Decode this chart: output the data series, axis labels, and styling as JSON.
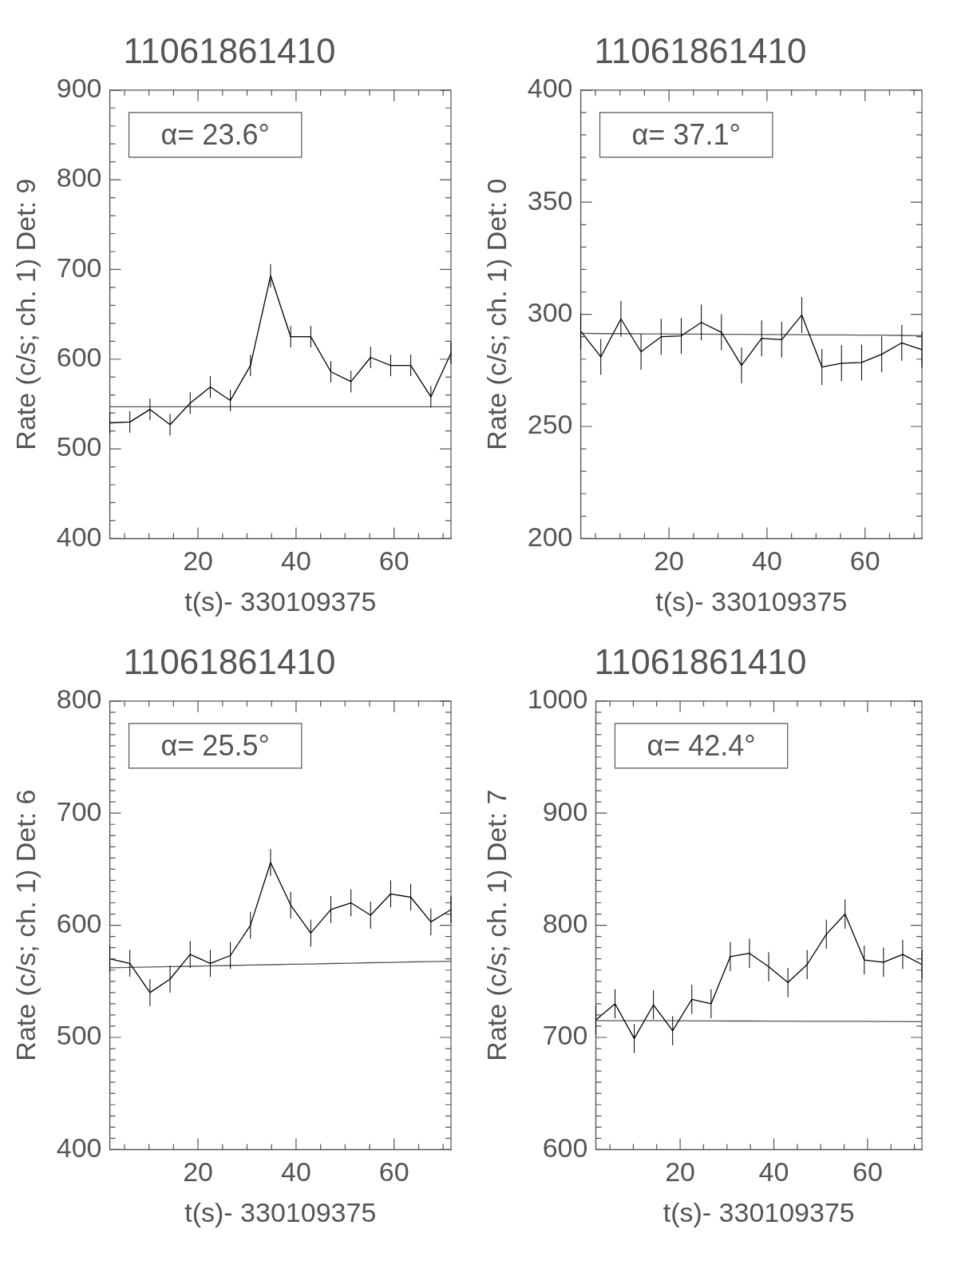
{
  "chart_data": [
    {
      "type": "line",
      "title": "11061861410",
      "xlabel": "t(s)- 330109375",
      "ylabel": "Rate (c/s; ch. 1) Det: 9",
      "annotations": [
        "α= 23.6°"
      ],
      "x": [
        2,
        6.1,
        10.2,
        14.3,
        18.4,
        22.5,
        26.6,
        30.7,
        34.8,
        38.9,
        43,
        47.1,
        51.2,
        55.2,
        59.3,
        63.4,
        67.5,
        71.6
      ],
      "xlim": [
        2,
        71.6
      ],
      "xticks": [
        {
          "value": 5,
          "label": null
        },
        {
          "value": 10,
          "label": null
        },
        {
          "value": 15,
          "label": null
        },
        20,
        {
          "value": 25,
          "label": null
        },
        {
          "value": 30,
          "label": null
        },
        {
          "value": 35,
          "label": null
        },
        40,
        {
          "value": 45,
          "label": null
        },
        {
          "value": 50,
          "label": null
        },
        {
          "value": 55,
          "label": null
        },
        60,
        {
          "value": 65,
          "label": null
        },
        {
          "value": 70,
          "label": null
        }
      ],
      "ylim": [
        400,
        900
      ],
      "yticks": [
        400,
        {
          "value": 420,
          "label": null
        },
        {
          "value": 440,
          "label": null
        },
        {
          "value": 460,
          "label": null
        },
        {
          "value": 480,
          "label": null
        },
        500,
        {
          "value": 520,
          "label": null
        },
        {
          "value": 540,
          "label": null
        },
        {
          "value": 560,
          "label": null
        },
        {
          "value": 580,
          "label": null
        },
        600,
        {
          "value": 620,
          "label": null
        },
        {
          "value": 640,
          "label": null
        },
        {
          "value": 660,
          "label": null
        },
        {
          "value": 680,
          "label": null
        },
        700,
        {
          "value": 720,
          "label": null
        },
        {
          "value": 740,
          "label": null
        },
        {
          "value": 760,
          "label": null
        },
        {
          "value": 780,
          "label": null
        },
        800,
        {
          "value": 820,
          "label": null
        },
        {
          "value": 840,
          "label": null
        },
        {
          "value": 860,
          "label": null
        },
        {
          "value": 880,
          "label": null
        },
        900
      ],
      "series": [
        {
          "color": "#000000",
          "values": [
            529,
            530,
            544,
            527,
            551,
            569,
            554,
            593,
            693,
            625,
            625,
            586,
            575,
            602,
            593,
            593,
            558,
            607
          ],
          "errors": [
            12,
            12,
            12,
            12,
            12,
            12,
            12,
            12,
            13,
            12,
            12,
            12,
            12,
            12,
            12,
            12,
            12,
            12
          ]
        },
        {
          "type": "line",
          "color": "#555555",
          "values": [
            547,
            547,
            547,
            547,
            547,
            547,
            547,
            547,
            547,
            547,
            547,
            547,
            547,
            547,
            547,
            547,
            547,
            547
          ]
        }
      ]
    },
    {
      "type": "line",
      "title": "11061861410",
      "xlabel": "t(s)- 330109375",
      "ylabel": "Rate (c/s; ch. 1) Det: 0",
      "annotations": [
        "α= 37.1°"
      ],
      "x": [
        2,
        6.1,
        10.2,
        14.3,
        18.4,
        22.5,
        26.6,
        30.7,
        34.8,
        38.9,
        43,
        47.1,
        51.2,
        55.2,
        59.3,
        63.4,
        67.5,
        71.6
      ],
      "xlim": [
        2,
        71.6
      ],
      "xticks": [
        {
          "value": 5,
          "label": null
        },
        {
          "value": 10,
          "label": null
        },
        {
          "value": 15,
          "label": null
        },
        20,
        {
          "value": 25,
          "label": null
        },
        {
          "value": 30,
          "label": null
        },
        {
          "value": 35,
          "label": null
        },
        40,
        {
          "value": 45,
          "label": null
        },
        {
          "value": 50,
          "label": null
        },
        {
          "value": 55,
          "label": null
        },
        60,
        {
          "value": 65,
          "label": null
        },
        {
          "value": 70,
          "label": null
        }
      ],
      "ylim": [
        200,
        400
      ],
      "yticks": [
        200,
        {
          "value": 210,
          "label": null
        },
        {
          "value": 220,
          "label": null
        },
        {
          "value": 230,
          "label": null
        },
        {
          "value": 240,
          "label": null
        },
        250,
        {
          "value": 260,
          "label": null
        },
        {
          "value": 270,
          "label": null
        },
        {
          "value": 280,
          "label": null
        },
        {
          "value": 290,
          "label": null
        },
        300,
        {
          "value": 310,
          "label": null
        },
        {
          "value": 320,
          "label": null
        },
        {
          "value": 330,
          "label": null
        },
        {
          "value": 340,
          "label": null
        },
        350,
        {
          "value": 360,
          "label": null
        },
        {
          "value": 370,
          "label": null
        },
        {
          "value": 380,
          "label": null
        },
        {
          "value": 390,
          "label": null
        },
        400
      ],
      "series": [
        {
          "color": "#000000",
          "values": [
            292.5,
            281,
            298,
            283.3,
            290,
            290.4,
            296.4,
            292,
            277.2,
            289.3,
            288.7,
            299.7,
            276.5,
            278.2,
            278.5,
            282.2,
            287.3,
            284.2
          ],
          "errors": [
            8,
            8,
            8,
            8,
            8,
            8,
            8,
            8,
            8,
            8,
            8,
            8,
            8,
            8,
            8,
            8,
            8,
            8
          ]
        },
        {
          "type": "line",
          "color": "#555555",
          "values": [
            291.5,
            291.4,
            291.4,
            291.3,
            291.3,
            291.2,
            291.2,
            291.1,
            291.1,
            291,
            291,
            290.9,
            290.8,
            290.8,
            290.7,
            290.7,
            290.6,
            290.5
          ]
        }
      ]
    },
    {
      "type": "line",
      "title": "11061861410",
      "xlabel": "t(s)- 330109375",
      "ylabel": "Rate (c/s; ch. 1) Det: 6",
      "annotations": [
        "α= 25.5°"
      ],
      "x": [
        2,
        6.1,
        10.2,
        14.3,
        18.4,
        22.5,
        26.6,
        30.7,
        34.8,
        38.9,
        43,
        47.1,
        51.2,
        55.2,
        59.3,
        63.4,
        67.5,
        71.6
      ],
      "xlim": [
        2,
        71.6
      ],
      "xticks": [
        {
          "value": 5,
          "label": null
        },
        {
          "value": 10,
          "label": null
        },
        {
          "value": 15,
          "label": null
        },
        20,
        {
          "value": 25,
          "label": null
        },
        {
          "value": 30,
          "label": null
        },
        {
          "value": 35,
          "label": null
        },
        40,
        {
          "value": 45,
          "label": null
        },
        {
          "value": 50,
          "label": null
        },
        {
          "value": 55,
          "label": null
        },
        60,
        {
          "value": 65,
          "label": null
        },
        {
          "value": 70,
          "label": null
        }
      ],
      "ylim": [
        400,
        800
      ],
      "yticks": [
        400,
        {
          "value": 410,
          "label": null
        },
        {
          "value": 420,
          "label": null
        },
        {
          "value": 430,
          "label": null
        },
        {
          "value": 440,
          "label": null
        },
        {
          "value": 450,
          "label": null
        },
        {
          "value": 460,
          "label": null
        },
        {
          "value": 470,
          "label": null
        },
        {
          "value": 480,
          "label": null
        },
        {
          "value": 490,
          "label": null
        },
        500,
        {
          "value": 510,
          "label": null
        },
        {
          "value": 520,
          "label": null
        },
        {
          "value": 530,
          "label": null
        },
        {
          "value": 540,
          "label": null
        },
        {
          "value": 550,
          "label": null
        },
        {
          "value": 560,
          "label": null
        },
        {
          "value": 570,
          "label": null
        },
        {
          "value": 580,
          "label": null
        },
        {
          "value": 590,
          "label": null
        },
        600,
        {
          "value": 610,
          "label": null
        },
        {
          "value": 620,
          "label": null
        },
        {
          "value": 630,
          "label": null
        },
        {
          "value": 640,
          "label": null
        },
        {
          "value": 650,
          "label": null
        },
        {
          "value": 660,
          "label": null
        },
        {
          "value": 670,
          "label": null
        },
        {
          "value": 680,
          "label": null
        },
        {
          "value": 690,
          "label": null
        },
        700,
        {
          "value": 710,
          "label": null
        },
        {
          "value": 720,
          "label": null
        },
        {
          "value": 730,
          "label": null
        },
        {
          "value": 740,
          "label": null
        },
        {
          "value": 750,
          "label": null
        },
        {
          "value": 760,
          "label": null
        },
        {
          "value": 770,
          "label": null
        },
        {
          "value": 780,
          "label": null
        },
        {
          "value": 790,
          "label": null
        },
        800
      ],
      "series": [
        {
          "color": "#000000",
          "values": [
            570,
            566,
            540,
            552,
            574,
            566,
            573,
            600,
            656,
            618,
            593,
            614,
            620,
            609,
            628,
            625,
            603,
            614
          ],
          "errors": [
            12,
            12,
            12,
            12,
            12,
            12,
            12,
            12,
            12,
            12,
            12,
            12,
            12,
            12,
            12,
            12,
            12,
            12
          ]
        },
        {
          "type": "line",
          "color": "#555555",
          "values": [
            562,
            562.4,
            562.7,
            563.1,
            563.4,
            563.8,
            564.1,
            564.5,
            564.8,
            565.2,
            565.5,
            565.9,
            566.2,
            566.6,
            566.9,
            567.3,
            567.6,
            568
          ]
        }
      ]
    },
    {
      "type": "line",
      "title": "11061861410",
      "xlabel": "t(s)- 330109375",
      "ylabel": "Rate (c/s; ch. 1) Det: 7",
      "annotations": [
        "α= 42.4°"
      ],
      "x": [
        2,
        6.1,
        10.2,
        14.3,
        18.4,
        22.5,
        26.6,
        30.7,
        34.8,
        38.9,
        43,
        47.1,
        51.2,
        55.2,
        59.3,
        63.4,
        67.5,
        71.6
      ],
      "xlim": [
        2,
        71.6
      ],
      "xticks": [
        {
          "value": 5,
          "label": null
        },
        {
          "value": 10,
          "label": null
        },
        {
          "value": 15,
          "label": null
        },
        20,
        {
          "value": 25,
          "label": null
        },
        {
          "value": 30,
          "label": null
        },
        {
          "value": 35,
          "label": null
        },
        40,
        {
          "value": 45,
          "label": null
        },
        {
          "value": 50,
          "label": null
        },
        {
          "value": 55,
          "label": null
        },
        60,
        {
          "value": 65,
          "label": null
        },
        {
          "value": 70,
          "label": null
        }
      ],
      "ylim": [
        600,
        1000
      ],
      "yticks": [
        600,
        {
          "value": 610,
          "label": null
        },
        {
          "value": 620,
          "label": null
        },
        {
          "value": 630,
          "label": null
        },
        {
          "value": 640,
          "label": null
        },
        {
          "value": 650,
          "label": null
        },
        {
          "value": 660,
          "label": null
        },
        {
          "value": 670,
          "label": null
        },
        {
          "value": 680,
          "label": null
        },
        {
          "value": 690,
          "label": null
        },
        700,
        {
          "value": 710,
          "label": null
        },
        {
          "value": 720,
          "label": null
        },
        {
          "value": 730,
          "label": null
        },
        {
          "value": 740,
          "label": null
        },
        {
          "value": 750,
          "label": null
        },
        {
          "value": 760,
          "label": null
        },
        {
          "value": 770,
          "label": null
        },
        {
          "value": 780,
          "label": null
        },
        {
          "value": 790,
          "label": null
        },
        800,
        {
          "value": 810,
          "label": null
        },
        {
          "value": 820,
          "label": null
        },
        {
          "value": 830,
          "label": null
        },
        {
          "value": 840,
          "label": null
        },
        {
          "value": 850,
          "label": null
        },
        {
          "value": 860,
          "label": null
        },
        {
          "value": 870,
          "label": null
        },
        {
          "value": 880,
          "label": null
        },
        {
          "value": 890,
          "label": null
        },
        900,
        {
          "value": 910,
          "label": null
        },
        {
          "value": 920,
          "label": null
        },
        {
          "value": 930,
          "label": null
        },
        {
          "value": 940,
          "label": null
        },
        {
          "value": 950,
          "label": null
        },
        {
          "value": 960,
          "label": null
        },
        {
          "value": 970,
          "label": null
        },
        {
          "value": 980,
          "label": null
        },
        {
          "value": 990,
          "label": null
        },
        1000
      ],
      "series": [
        {
          "color": "#000000",
          "values": [
            715.5,
            730,
            699,
            729,
            706,
            734,
            730,
            772,
            775,
            763,
            749,
            765,
            792,
            810,
            769,
            767,
            774,
            765
          ],
          "errors": [
            13,
            13,
            13,
            13,
            13,
            13,
            13,
            13,
            13,
            13,
            13,
            13,
            13,
            13,
            13,
            13,
            13,
            13
          ]
        },
        {
          "type": "line",
          "color": "#555555",
          "values": [
            715,
            714.9,
            714.9,
            714.8,
            714.8,
            714.7,
            714.7,
            714.6,
            714.6,
            714.5,
            714.5,
            714.4,
            714.4,
            714.3,
            714.3,
            714.2,
            714.1,
            714
          ]
        }
      ]
    }
  ]
}
